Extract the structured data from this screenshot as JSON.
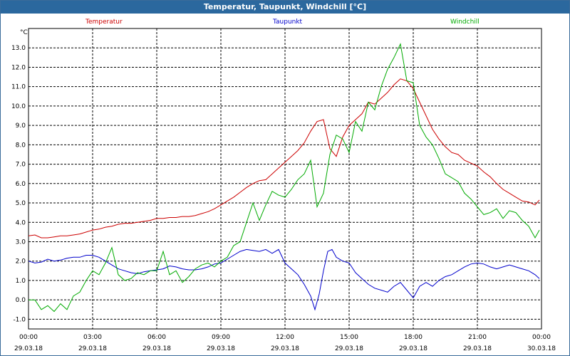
{
  "window": {
    "title": "Temperatur, Taupunkt, Windchill [°C]"
  },
  "colors": {
    "temperatur": "#cc0000",
    "taupunkt": "#0000cc",
    "windchill": "#00aa00",
    "titlebar": "#2b689e"
  },
  "chart_data": {
    "type": "line",
    "title": "Temperatur, Taupunkt, Windchill [°C]",
    "ylabel": "°C",
    "ylim": [
      -1.5,
      14.0
    ],
    "xlim": [
      0,
      24
    ],
    "yticks": [
      "-1.0",
      "0.0",
      "1.0",
      "2.0",
      "3.0",
      "4.0",
      "5.0",
      "6.0",
      "7.0",
      "8.0",
      "9.0",
      "10.0",
      "11.0",
      "12.0",
      "13.0"
    ],
    "ytick_values": [
      -1,
      0,
      1,
      2,
      3,
      4,
      5,
      6,
      7,
      8,
      9,
      10,
      11,
      12,
      13
    ],
    "xticks": [
      {
        "time": "00:00",
        "date": "29.03.18",
        "h": 0
      },
      {
        "time": "03:00",
        "date": "29.03.18",
        "h": 3
      },
      {
        "time": "06:00",
        "date": "29.03.18",
        "h": 6
      },
      {
        "time": "09:00",
        "date": "29.03.18",
        "h": 9
      },
      {
        "time": "12:00",
        "date": "29.03.18",
        "h": 12
      },
      {
        "time": "15:00",
        "date": "29.03.18",
        "h": 15
      },
      {
        "time": "18:00",
        "date": "29.03.18",
        "h": 18
      },
      {
        "time": "21:00",
        "date": "29.03.18",
        "h": 21
      },
      {
        "time": "00:00",
        "date": "30.03.18",
        "h": 24
      }
    ],
    "grid": true,
    "series": [
      {
        "name": "Temperatur",
        "color": "#cc0000",
        "x": [
          0,
          0.3,
          0.6,
          0.9,
          1.2,
          1.5,
          1.8,
          2.1,
          2.4,
          2.7,
          3.0,
          3.3,
          3.6,
          3.9,
          4.2,
          4.5,
          4.8,
          5.1,
          5.4,
          5.7,
          6.0,
          6.3,
          6.6,
          6.9,
          7.2,
          7.5,
          7.8,
          8.1,
          8.4,
          8.7,
          9.0,
          9.3,
          9.6,
          9.9,
          10.2,
          10.5,
          10.8,
          11.1,
          11.4,
          11.7,
          12.0,
          12.3,
          12.6,
          12.9,
          13.2,
          13.5,
          13.8,
          14.1,
          14.4,
          14.7,
          15.0,
          15.3,
          15.6,
          15.9,
          16.2,
          16.5,
          16.8,
          17.1,
          17.4,
          17.7,
          18.0,
          18.3,
          18.6,
          18.9,
          19.2,
          19.5,
          19.8,
          20.1,
          20.4,
          20.7,
          21.0,
          21.3,
          21.6,
          21.9,
          22.2,
          22.5,
          22.8,
          23.1,
          23.4,
          23.7,
          23.9
        ],
        "y": [
          3.3,
          3.35,
          3.2,
          3.2,
          3.25,
          3.3,
          3.3,
          3.35,
          3.4,
          3.5,
          3.6,
          3.65,
          3.75,
          3.8,
          3.9,
          3.95,
          3.95,
          4.0,
          4.05,
          4.1,
          4.2,
          4.2,
          4.25,
          4.25,
          4.3,
          4.3,
          4.35,
          4.45,
          4.55,
          4.7,
          4.9,
          5.1,
          5.3,
          5.55,
          5.8,
          6.0,
          6.15,
          6.2,
          6.5,
          6.8,
          7.1,
          7.4,
          7.7,
          8.1,
          8.7,
          9.2,
          9.3,
          7.8,
          7.4,
          8.4,
          9.0,
          9.3,
          9.6,
          10.2,
          10.1,
          10.4,
          10.7,
          11.1,
          11.4,
          11.3,
          10.9,
          10.2,
          9.5,
          8.8,
          8.3,
          7.9,
          7.6,
          7.5,
          7.2,
          7.05,
          6.9,
          6.6,
          6.35,
          6.0,
          5.7,
          5.5,
          5.3,
          5.1,
          5.05,
          4.9,
          5.15
        ]
      },
      {
        "name": "Taupunkt",
        "color": "#0000cc",
        "x": [
          0,
          0.3,
          0.6,
          0.9,
          1.2,
          1.5,
          1.8,
          2.1,
          2.4,
          2.7,
          3.0,
          3.3,
          3.6,
          3.9,
          4.2,
          4.5,
          4.8,
          5.1,
          5.4,
          5.7,
          6.0,
          6.3,
          6.6,
          6.9,
          7.2,
          7.5,
          7.8,
          8.1,
          8.4,
          8.7,
          9.0,
          9.3,
          9.6,
          9.9,
          10.2,
          10.5,
          10.8,
          11.1,
          11.4,
          11.7,
          12.0,
          12.3,
          12.6,
          12.9,
          13.2,
          13.4,
          13.6,
          13.8,
          14.0,
          14.2,
          14.4,
          14.7,
          15.0,
          15.3,
          15.6,
          15.9,
          16.2,
          16.5,
          16.8,
          17.1,
          17.4,
          17.7,
          18.0,
          18.3,
          18.6,
          18.9,
          19.2,
          19.5,
          19.8,
          20.1,
          20.4,
          20.7,
          21.0,
          21.3,
          21.6,
          21.9,
          22.2,
          22.5,
          22.8,
          23.1,
          23.4,
          23.7,
          23.9
        ],
        "y": [
          2.0,
          1.9,
          1.95,
          2.1,
          2.0,
          2.05,
          2.15,
          2.2,
          2.2,
          2.3,
          2.3,
          2.2,
          2.0,
          1.8,
          1.6,
          1.5,
          1.4,
          1.35,
          1.45,
          1.5,
          1.55,
          1.6,
          1.75,
          1.7,
          1.6,
          1.55,
          1.55,
          1.6,
          1.7,
          1.85,
          1.9,
          2.1,
          2.3,
          2.5,
          2.6,
          2.55,
          2.5,
          2.6,
          2.4,
          2.6,
          1.9,
          1.6,
          1.3,
          0.8,
          0.2,
          -0.5,
          0.3,
          1.5,
          2.5,
          2.6,
          2.2,
          2.0,
          1.9,
          1.4,
          1.1,
          0.8,
          0.6,
          0.5,
          0.4,
          0.7,
          0.9,
          0.5,
          0.1,
          0.7,
          0.9,
          0.7,
          1.0,
          1.2,
          1.3,
          1.5,
          1.7,
          1.85,
          1.9,
          1.85,
          1.7,
          1.6,
          1.7,
          1.8,
          1.7,
          1.6,
          1.5,
          1.3,
          1.1
        ]
      },
      {
        "name": "Windchill",
        "color": "#00aa00",
        "x": [
          0,
          0.3,
          0.6,
          0.9,
          1.2,
          1.5,
          1.8,
          2.1,
          2.4,
          2.7,
          3.0,
          3.3,
          3.6,
          3.9,
          4.2,
          4.5,
          4.8,
          5.1,
          5.4,
          5.7,
          6.0,
          6.3,
          6.6,
          6.9,
          7.2,
          7.5,
          7.8,
          8.1,
          8.4,
          8.7,
          9.0,
          9.3,
          9.6,
          9.9,
          10.2,
          10.5,
          10.8,
          11.1,
          11.4,
          11.7,
          12.0,
          12.3,
          12.6,
          12.9,
          13.2,
          13.5,
          13.8,
          14.1,
          14.4,
          14.7,
          15.0,
          15.3,
          15.6,
          15.9,
          16.2,
          16.5,
          16.8,
          17.1,
          17.4,
          17.7,
          18.0,
          18.3,
          18.6,
          18.9,
          19.2,
          19.5,
          19.8,
          20.1,
          20.4,
          20.7,
          21.0,
          21.3,
          21.6,
          21.9,
          22.2,
          22.5,
          22.8,
          23.1,
          23.4,
          23.7,
          23.9
        ],
        "y": [
          0.0,
          0.0,
          -0.5,
          -0.3,
          -0.6,
          -0.2,
          -0.5,
          0.2,
          0.4,
          1.0,
          1.5,
          1.3,
          1.9,
          2.7,
          1.3,
          1.0,
          1.1,
          1.4,
          1.3,
          1.5,
          1.5,
          2.5,
          1.3,
          1.5,
          0.9,
          1.2,
          1.6,
          1.8,
          1.9,
          1.7,
          2.0,
          2.2,
          2.8,
          3.0,
          4.0,
          5.0,
          4.1,
          4.9,
          5.6,
          5.4,
          5.3,
          5.7,
          6.2,
          6.5,
          7.2,
          4.8,
          5.5,
          7.5,
          8.5,
          8.3,
          7.6,
          9.2,
          8.7,
          10.2,
          9.8,
          11.0,
          11.9,
          12.5,
          13.2,
          11.3,
          11.2,
          9.0,
          8.4,
          8.0,
          7.3,
          6.5,
          6.3,
          6.1,
          5.5,
          5.2,
          4.8,
          4.4,
          4.5,
          4.7,
          4.2,
          4.6,
          4.5,
          4.1,
          3.8,
          3.2,
          3.6
        ]
      }
    ]
  }
}
